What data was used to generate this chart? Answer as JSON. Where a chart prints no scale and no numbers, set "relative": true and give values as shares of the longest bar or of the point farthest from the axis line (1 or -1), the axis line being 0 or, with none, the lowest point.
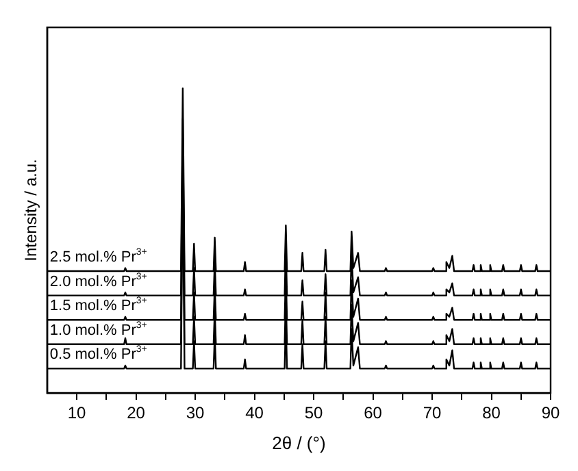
{
  "chart_data": {
    "type": "line",
    "relative": true,
    "xlabel": "2θ / (°)",
    "ylabel": "Intensity / a.u.",
    "tick_labels": "x",
    "grid": false,
    "legend": false,
    "marker": "none",
    "line_style": "solid",
    "xlim": [
      5,
      90
    ],
    "xticks": [
      10,
      {
        "value": 15,
        "label": null
      },
      20,
      {
        "value": 25,
        "label": null
      },
      30,
      {
        "value": 35,
        "label": null
      },
      40,
      {
        "value": 45,
        "label": null
      },
      50,
      {
        "value": 55,
        "label": null
      },
      60,
      {
        "value": 65,
        "label": null
      },
      70,
      {
        "value": 75,
        "label": null
      },
      80,
      {
        "value": 85,
        "label": null
      },
      90
    ],
    "x": [
      5,
      18.0,
      18.2,
      18.4,
      27.6,
      27.9,
      28.2,
      29.6,
      29.8,
      30.0,
      33.1,
      33.3,
      33.5,
      38.2,
      38.4,
      38.6,
      45.1,
      45.3,
      45.5,
      47.9,
      48.1,
      48.3,
      51.8,
      52.0,
      52.2,
      56.2,
      56.4,
      56.7,
      57.5,
      57.8,
      62.0,
      62.2,
      62.4,
      70.0,
      70.2,
      70.4,
      72.2,
      72.4,
      72.9,
      73.4,
      73.7,
      76.8,
      77.0,
      77.2,
      78.0,
      78.2,
      78.4,
      79.6,
      79.8,
      80.0,
      81.8,
      82.0,
      82.2,
      84.8,
      85.0,
      85.2,
      87.4,
      87.6,
      87.8,
      90
    ],
    "series": [
      {
        "name": "2.5 mol.% Pr$^{3+}$",
        "color": "#000000",
        "values": [
          0.4,
          0.4,
          0.41,
          0.4,
          0.4,
          1.0,
          0.4,
          0.4,
          0.49,
          0.4,
          0.4,
          0.51,
          0.4,
          0.4,
          0.43,
          0.4,
          0.4,
          0.55,
          0.4,
          0.4,
          0.46,
          0.4,
          0.4,
          0.47,
          0.4,
          0.4,
          0.53,
          0.41,
          0.46,
          0.4,
          0.4,
          0.41,
          0.4,
          0.4,
          0.41,
          0.4,
          0.4,
          0.43,
          0.41,
          0.45,
          0.4,
          0.4,
          0.42,
          0.4,
          0.4,
          0.42,
          0.4,
          0.4,
          0.42,
          0.4,
          0.4,
          0.42,
          0.4,
          0.4,
          0.42,
          0.4,
          0.4,
          0.42,
          0.4,
          0.4
        ]
      },
      {
        "name": "2.0 mol.% Pr$^{3+}$",
        "color": "#000000",
        "values": [
          0.32,
          0.32,
          0.33,
          0.32,
          0.32,
          0.9,
          0.32,
          0.32,
          0.41,
          0.32,
          0.32,
          0.43,
          0.32,
          0.32,
          0.34,
          0.32,
          0.32,
          0.48,
          0.32,
          0.32,
          0.37,
          0.32,
          0.32,
          0.39,
          0.32,
          0.32,
          0.46,
          0.33,
          0.38,
          0.32,
          0.32,
          0.33,
          0.32,
          0.32,
          0.33,
          0.32,
          0.32,
          0.34,
          0.33,
          0.36,
          0.32,
          0.32,
          0.34,
          0.32,
          0.32,
          0.34,
          0.32,
          0.32,
          0.34,
          0.32,
          0.32,
          0.34,
          0.32,
          0.32,
          0.34,
          0.32,
          0.32,
          0.34,
          0.32,
          0.32
        ]
      },
      {
        "name": "1.5 mol.% Pr$^{3+}$",
        "color": "#000000",
        "values": [
          0.24,
          0.24,
          0.25,
          0.24,
          0.24,
          0.84,
          0.24,
          0.24,
          0.33,
          0.24,
          0.24,
          0.35,
          0.24,
          0.24,
          0.26,
          0.24,
          0.24,
          0.4,
          0.24,
          0.24,
          0.3,
          0.24,
          0.24,
          0.33,
          0.24,
          0.24,
          0.37,
          0.25,
          0.31,
          0.24,
          0.24,
          0.25,
          0.24,
          0.24,
          0.25,
          0.24,
          0.24,
          0.26,
          0.25,
          0.28,
          0.24,
          0.24,
          0.26,
          0.24,
          0.24,
          0.26,
          0.24,
          0.24,
          0.26,
          0.24,
          0.24,
          0.26,
          0.24,
          0.24,
          0.26,
          0.24,
          0.24,
          0.26,
          0.24,
          0.24
        ]
      },
      {
        "name": "1.0 mol.% Pr$^{3+}$",
        "color": "#000000",
        "values": [
          0.16,
          0.16,
          0.18,
          0.16,
          0.16,
          0.78,
          0.16,
          0.16,
          0.25,
          0.16,
          0.16,
          0.27,
          0.16,
          0.16,
          0.19,
          0.16,
          0.16,
          0.32,
          0.16,
          0.16,
          0.24,
          0.16,
          0.16,
          0.25,
          0.16,
          0.16,
          0.29,
          0.17,
          0.23,
          0.16,
          0.16,
          0.17,
          0.16,
          0.16,
          0.17,
          0.16,
          0.16,
          0.19,
          0.17,
          0.21,
          0.16,
          0.16,
          0.18,
          0.16,
          0.16,
          0.18,
          0.16,
          0.16,
          0.18,
          0.16,
          0.16,
          0.18,
          0.16,
          0.16,
          0.18,
          0.16,
          0.16,
          0.18,
          0.16,
          0.16
        ]
      },
      {
        "name": "0.5 mol.% Pr$^{3+}$",
        "color": "#000000",
        "values": [
          0.08,
          0.08,
          0.09,
          0.08,
          0.08,
          0.72,
          0.08,
          0.08,
          0.17,
          0.08,
          0.08,
          0.19,
          0.08,
          0.08,
          0.11,
          0.08,
          0.08,
          0.24,
          0.08,
          0.08,
          0.16,
          0.08,
          0.08,
          0.17,
          0.08,
          0.08,
          0.21,
          0.09,
          0.15,
          0.08,
          0.08,
          0.09,
          0.08,
          0.08,
          0.09,
          0.08,
          0.08,
          0.11,
          0.09,
          0.14,
          0.08,
          0.08,
          0.1,
          0.08,
          0.08,
          0.1,
          0.08,
          0.08,
          0.1,
          0.08,
          0.08,
          0.1,
          0.08,
          0.08,
          0.1,
          0.08,
          0.08,
          0.1,
          0.08,
          0.08
        ]
      }
    ]
  }
}
